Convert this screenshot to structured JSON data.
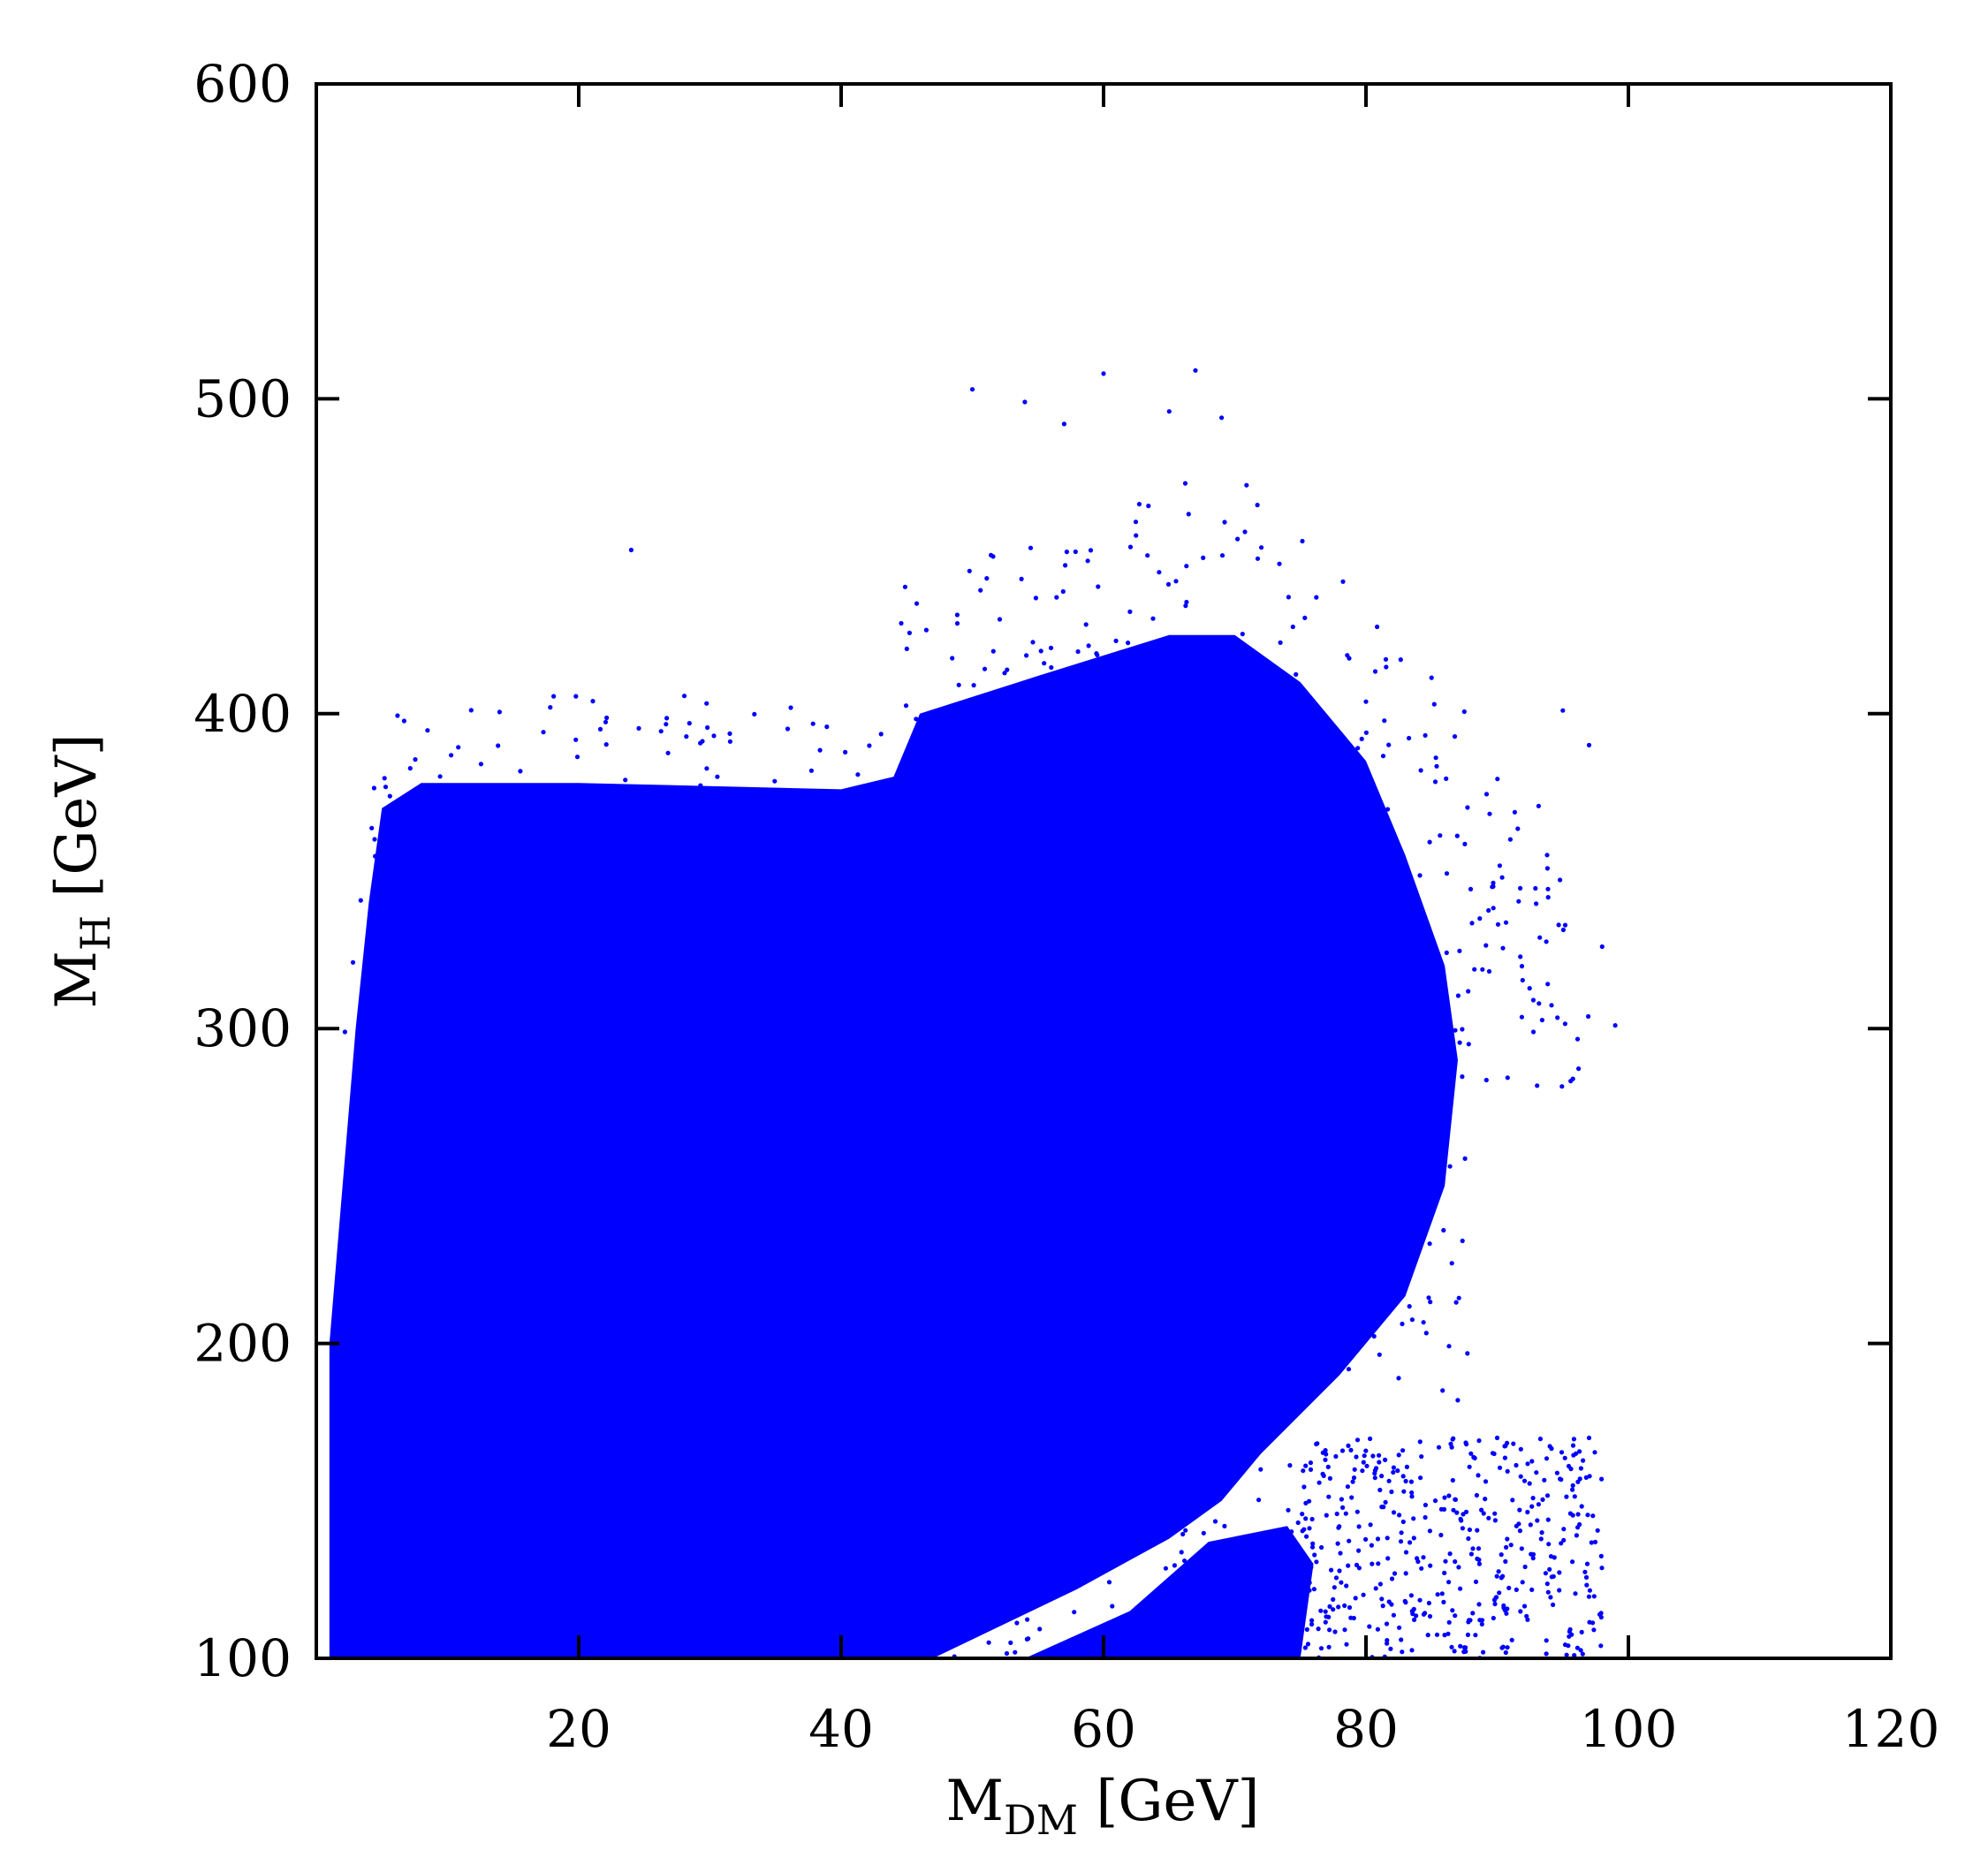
{
  "chart_data": {
    "type": "scatter",
    "xlabel": {
      "main": "M",
      "sub": "DM",
      "unit": " [GeV]"
    },
    "ylabel": {
      "main": "M",
      "sub": "H",
      "unit": " [GeV]"
    },
    "xlim": [
      0,
      120
    ],
    "ylim": [
      100,
      600
    ],
    "xticks": [
      20,
      40,
      60,
      80,
      100,
      120
    ],
    "yticks": [
      100,
      200,
      300,
      400,
      500,
      600
    ],
    "marker_color": "#0000ff",
    "grid": false,
    "series": [
      {
        "points_description": "dense scan points",
        "dense_region_outline": [
          [
            1,
            100
          ],
          [
            1,
            200
          ],
          [
            2,
            250
          ],
          [
            3,
            300
          ],
          [
            4,
            340
          ],
          [
            5,
            370
          ],
          [
            8,
            378
          ],
          [
            20,
            378
          ],
          [
            40,
            376
          ],
          [
            44,
            380
          ],
          [
            46,
            400
          ],
          [
            55,
            412
          ],
          [
            65,
            425
          ],
          [
            70,
            425
          ],
          [
            75,
            410
          ],
          [
            80,
            385
          ],
          [
            83,
            355
          ],
          [
            86,
            320
          ],
          [
            87,
            290
          ],
          [
            86,
            250
          ],
          [
            83,
            215
          ],
          [
            78,
            190
          ],
          [
            72,
            165
          ],
          [
            69,
            150
          ],
          [
            65,
            138
          ],
          [
            58,
            122
          ],
          [
            52,
            110
          ],
          [
            47,
            100
          ]
        ],
        "lower_branch_outline": [
          [
            54,
            100
          ],
          [
            62,
            115
          ],
          [
            68,
            137
          ],
          [
            74,
            142
          ],
          [
            76,
            130
          ],
          [
            75,
            100
          ]
        ],
        "sparse_region": {
          "x": [
            44,
            99
          ],
          "y": [
            100,
            510
          ]
        },
        "lower_sparse_region": {
          "x": [
            74,
            98
          ],
          "y": [
            100,
            170
          ]
        },
        "outlier_points": [
          [
            24,
            452
          ],
          [
            50,
            503
          ],
          [
            54,
            499
          ],
          [
            60,
            508
          ],
          [
            67,
            509
          ],
          [
            65,
            496
          ],
          [
            69,
            494
          ],
          [
            57,
            492
          ],
          [
            97,
            390
          ],
          [
            95,
            401
          ],
          [
            99,
            301
          ],
          [
            98,
            326
          ],
          [
            97,
            170
          ],
          [
            96,
            165
          ],
          [
            90,
            170
          ],
          [
            88,
            165
          ]
        ]
      }
    ]
  }
}
